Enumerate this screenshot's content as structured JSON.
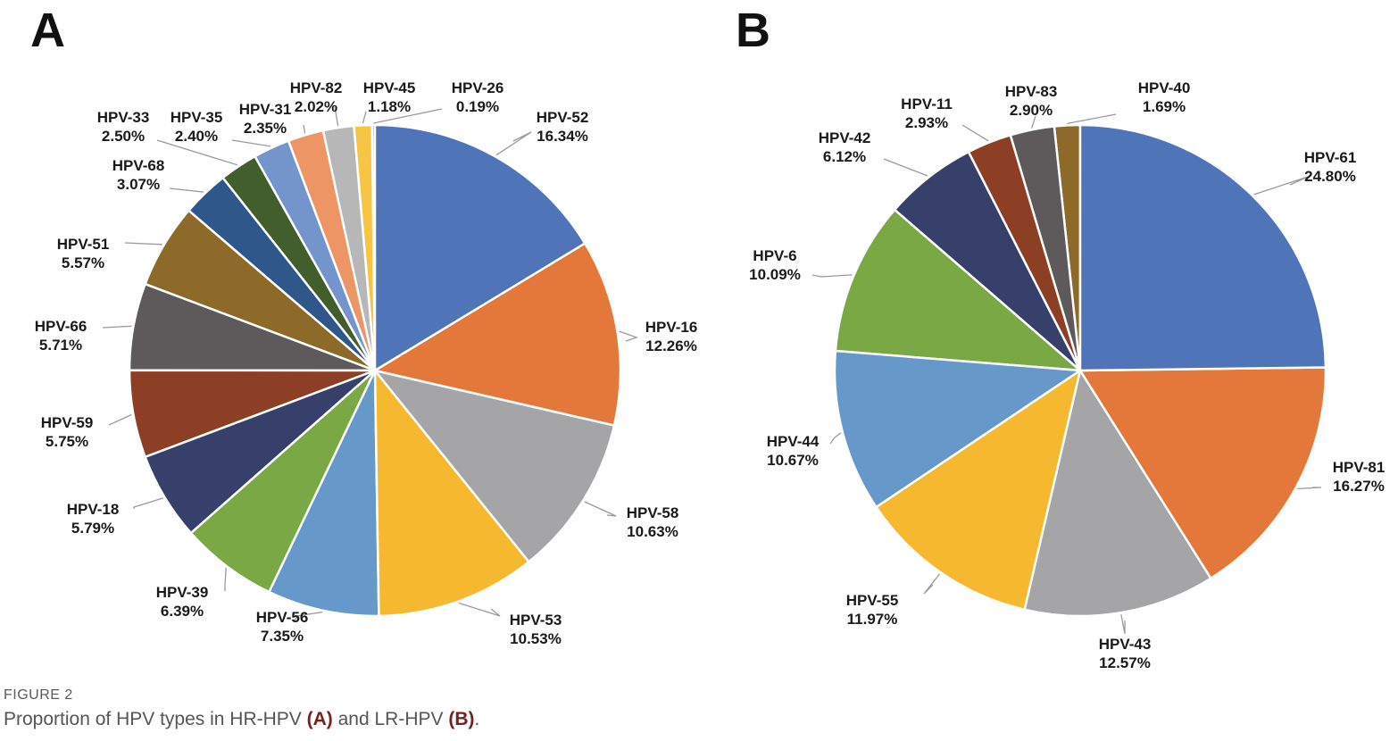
{
  "chart_data": [
    {
      "type": "pie",
      "panel": "A",
      "start_angle_deg": 0,
      "direction": "clockwise",
      "slices": [
        {
          "label": "HPV-52",
          "value": 16.34,
          "pct": "16.34%",
          "color": "#4F74B8"
        },
        {
          "label": "HPV-16",
          "value": 12.26,
          "pct": "12.26%",
          "color": "#E4773A"
        },
        {
          "label": "HPV-58",
          "value": 10.63,
          "pct": "10.63%",
          "color": "#A5A4A6"
        },
        {
          "label": "HPV-53",
          "value": 10.53,
          "pct": "10.53%",
          "color": "#F5B82E"
        },
        {
          "label": "HPV-56",
          "value": 7.35,
          "pct": "7.35%",
          "color": "#6699CA"
        },
        {
          "label": "HPV-39",
          "value": 6.39,
          "pct": "6.39%",
          "color": "#79A845"
        },
        {
          "label": "HPV-18",
          "value": 5.79,
          "pct": "5.79%",
          "color": "#373F6B"
        },
        {
          "label": "HPV-59",
          "value": 5.75,
          "pct": "5.75%",
          "color": "#8C3F24"
        },
        {
          "label": "HPV-66",
          "value": 5.71,
          "pct": "5.71%",
          "color": "#5E5A5B"
        },
        {
          "label": "HPV-51",
          "value": 5.57,
          "pct": "5.57%",
          "color": "#8E6A2A"
        },
        {
          "label": "HPV-68",
          "value": 3.07,
          "pct": "3.07%",
          "color": "#30578A"
        },
        {
          "label": "HPV-33",
          "value": 2.5,
          "pct": "2.50%",
          "color": "#425E2C"
        },
        {
          "label": "HPV-35",
          "value": 2.4,
          "pct": "2.40%",
          "color": "#7395CC"
        },
        {
          "label": "HPV-31",
          "value": 2.35,
          "pct": "2.35%",
          "color": "#EE9566"
        },
        {
          "label": "HPV-82",
          "value": 2.02,
          "pct": "2.02%",
          "color": "#B7B7B7"
        },
        {
          "label": "HPV-45",
          "value": 1.18,
          "pct": "1.18%",
          "color": "#F7C544"
        },
        {
          "label": "HPV-26",
          "value": 0.19,
          "pct": "0.19%",
          "color": "#8EACD8"
        }
      ]
    },
    {
      "type": "pie",
      "panel": "B",
      "start_angle_deg": 0,
      "direction": "clockwise",
      "slices": [
        {
          "label": "HPV-61",
          "value": 24.8,
          "pct": "24.80%",
          "color": "#4F74B8"
        },
        {
          "label": "HPV-81",
          "value": 16.27,
          "pct": "16.27%",
          "color": "#E4773A"
        },
        {
          "label": "HPV-43",
          "value": 12.57,
          "pct": "12.57%",
          "color": "#A5A4A6"
        },
        {
          "label": "HPV-55",
          "value": 11.97,
          "pct": "11.97%",
          "color": "#F5B82E"
        },
        {
          "label": "HPV-44",
          "value": 10.67,
          "pct": "10.67%",
          "color": "#6699CA"
        },
        {
          "label": "HPV-6",
          "value": 10.09,
          "pct": "10.09%",
          "color": "#79A845"
        },
        {
          "label": "HPV-42",
          "value": 6.12,
          "pct": "6.12%",
          "color": "#373F6B"
        },
        {
          "label": "HPV-11",
          "value": 2.93,
          "pct": "2.93%",
          "color": "#8C3F24"
        },
        {
          "label": "HPV-83",
          "value": 2.9,
          "pct": "2.90%",
          "color": "#5E5A5B"
        },
        {
          "label": "HPV-40",
          "value": 1.69,
          "pct": "1.69%",
          "color": "#8E6A2A"
        }
      ]
    }
  ],
  "caption": {
    "figure_label": "FIGURE 2",
    "text_1": "Proportion of HPV types in HR-HPV ",
    "ref_a": "(A)",
    "text_2": " and LR-HPV ",
    "ref_b": "(B)",
    "text_3": "."
  }
}
